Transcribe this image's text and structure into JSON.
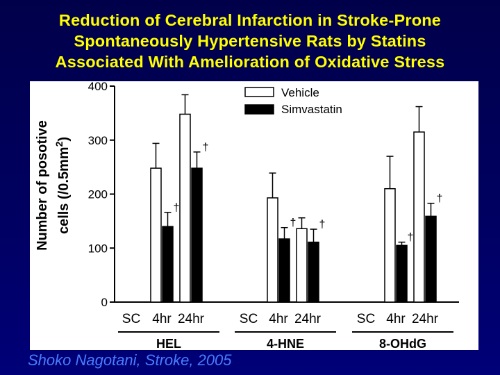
{
  "slide": {
    "title_lines": [
      "Reduction of Cerebral Infarction in Stroke-Prone",
      "Spontaneously Hypertensive Rats by Statins",
      "Associated With Amelioration of Oxidative Stress"
    ],
    "citation": "Shoko Nagotani, Stroke, 2005"
  },
  "chart_data": {
    "type": "bar",
    "ylabel_line1": "Number of posotive",
    "ylabel_line2": "cells (/0.5mm",
    "ylabel_superscript": "2",
    "ylabel_close": ")",
    "ylim": [
      0,
      400
    ],
    "yticks": [
      0,
      100,
      200,
      300,
      400
    ],
    "legend": {
      "placement": "top-center",
      "entries": [
        "Vehicle",
        "Simvastatin"
      ]
    },
    "groups": [
      {
        "name": "HEL",
        "timepoints": [
          "SC",
          "4hr",
          "24hr"
        ]
      },
      {
        "name": "4-HNE",
        "timepoints": [
          "SC",
          "4hr",
          "24hr"
        ]
      },
      {
        "name": "8-OHdG",
        "timepoints": [
          "SC",
          "4hr",
          "24hr"
        ]
      }
    ],
    "series": [
      {
        "name": "Vehicle",
        "color": "#ffffff",
        "edge": "#000000",
        "values": [
          [
            0,
            248,
            348
          ],
          [
            0,
            193,
            136
          ],
          [
            0,
            210,
            315
          ]
        ],
        "errors": [
          [
            0,
            46,
            36
          ],
          [
            0,
            46,
            20
          ],
          [
            0,
            60,
            47
          ]
        ]
      },
      {
        "name": "Simvastatin",
        "color": "#000000",
        "edge": "#000000",
        "values": [
          [
            0,
            140,
            248
          ],
          [
            0,
            117,
            111
          ],
          [
            0,
            105,
            159
          ]
        ],
        "errors": [
          [
            0,
            26,
            30
          ],
          [
            0,
            21,
            24
          ],
          [
            0,
            6,
            24
          ]
        ]
      }
    ],
    "significance_symbol": "†",
    "significant": [
      [
        false,
        true,
        true
      ],
      [
        false,
        true,
        true
      ],
      [
        false,
        true,
        true
      ]
    ]
  }
}
